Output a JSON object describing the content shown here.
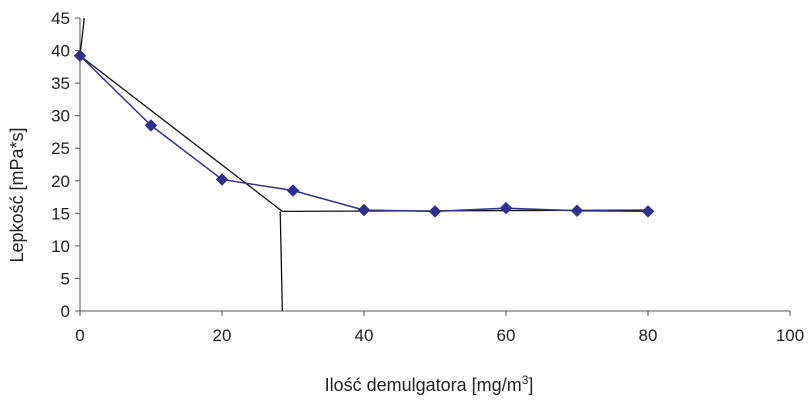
{
  "chart_data": {
    "type": "line",
    "xlabel": "Ilość demulgatora [mg/m",
    "xlabel_superscript": "3",
    "xlabel_suffix": "]",
    "ylabel": "Lepkość [mPa*s]",
    "xlim": [
      0,
      100
    ],
    "ylim": [
      0,
      45
    ],
    "xticks": [
      0,
      20,
      40,
      60,
      80,
      100
    ],
    "yticks": [
      0,
      5,
      10,
      15,
      20,
      25,
      30,
      35,
      40,
      45
    ],
    "grid": false,
    "legend": "none",
    "series": [
      {
        "color": "#2e3192",
        "marker": "diamond",
        "x": [
          0,
          10,
          20,
          30,
          40,
          50,
          60,
          70,
          80
        ],
        "y": [
          39.2,
          28.5,
          20.2,
          18.5,
          15.5,
          15.3,
          15.8,
          15.4,
          15.3
        ]
      }
    ],
    "annotation_lines": {
      "color": "#111111",
      "segments": [
        {
          "x": [
            0,
            28.5
          ],
          "y": [
            39.2,
            15.3
          ]
        },
        {
          "x": [
            28.5,
            80
          ],
          "y": [
            15.3,
            15.5
          ]
        },
        {
          "x": [
            28.2,
            28.5
          ],
          "y": [
            15.3,
            0
          ]
        },
        {
          "x": [
            0,
            0.6
          ],
          "y": [
            39.2,
            45
          ]
        }
      ]
    }
  }
}
